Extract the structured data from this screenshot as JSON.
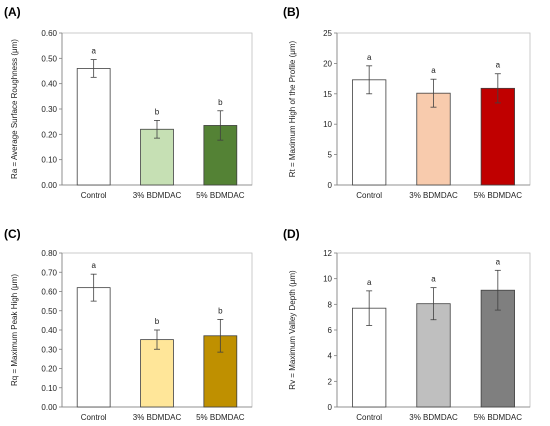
{
  "chart_data": [
    {
      "type": "bar",
      "panel_label": "(A)",
      "categories": [
        "Control",
        "3% BDMDAC",
        "5% BDMDAC"
      ],
      "values": [
        0.46,
        0.22,
        0.235
      ],
      "errors": [
        0.035,
        0.035,
        0.058
      ],
      "significance": [
        "a",
        "b",
        "b"
      ],
      "colors": [
        "#ffffff",
        "#c6e0b4",
        "#548235"
      ],
      "ylabel": "Ra = Average Surface Roughness (μm)",
      "ylim": [
        0,
        0.6
      ],
      "yticks": [
        "0.00",
        "0.10",
        "0.20",
        "0.30",
        "0.40",
        "0.50",
        "0.60"
      ],
      "grid": false
    },
    {
      "type": "bar",
      "panel_label": "(B)",
      "categories": [
        "Control",
        "3% BDMDAC",
        "5% BDMDAC"
      ],
      "values": [
        17.3,
        15.1,
        15.9
      ],
      "errors": [
        2.3,
        2.3,
        2.4
      ],
      "significance": [
        "a",
        "a",
        "a"
      ],
      "colors": [
        "#ffffff",
        "#f8cbad",
        "#c00000"
      ],
      "ylabel": "Rt = Maximum High of the Profile (μm)",
      "ylim": [
        0,
        25
      ],
      "yticks": [
        "0",
        "5",
        "10",
        "15",
        "20",
        "25"
      ],
      "grid": false
    },
    {
      "type": "bar",
      "panel_label": "(C)",
      "categories": [
        "Control",
        "3% BDMDAC",
        "5% BDMDAC"
      ],
      "values": [
        0.62,
        0.35,
        0.37
      ],
      "errors": [
        0.07,
        0.05,
        0.085
      ],
      "significance": [
        "a",
        "b",
        "b"
      ],
      "colors": [
        "#ffffff",
        "#ffe699",
        "#bf9000"
      ],
      "ylabel": "Rq = Maximum Peak High (μm)",
      "ylim": [
        0,
        0.8
      ],
      "yticks": [
        "0.00",
        "0.10",
        "0.20",
        "0.30",
        "0.40",
        "0.50",
        "0.60",
        "0.70",
        "0.80"
      ],
      "grid": false
    },
    {
      "type": "bar",
      "panel_label": "(D)",
      "categories": [
        "Control",
        "3% BDMDAC",
        "5% BDMDAC"
      ],
      "values": [
        7.7,
        8.05,
        9.1
      ],
      "errors": [
        1.35,
        1.25,
        1.55
      ],
      "significance": [
        "a",
        "a",
        "a"
      ],
      "colors": [
        "#ffffff",
        "#bfbfbf",
        "#7f7f7f"
      ],
      "ylabel": "Rv = Maximum Valley Depth (μm)",
      "ylim": [
        0,
        12
      ],
      "yticks": [
        "0",
        "2",
        "4",
        "6",
        "8",
        "10",
        "12"
      ],
      "grid": false
    }
  ]
}
